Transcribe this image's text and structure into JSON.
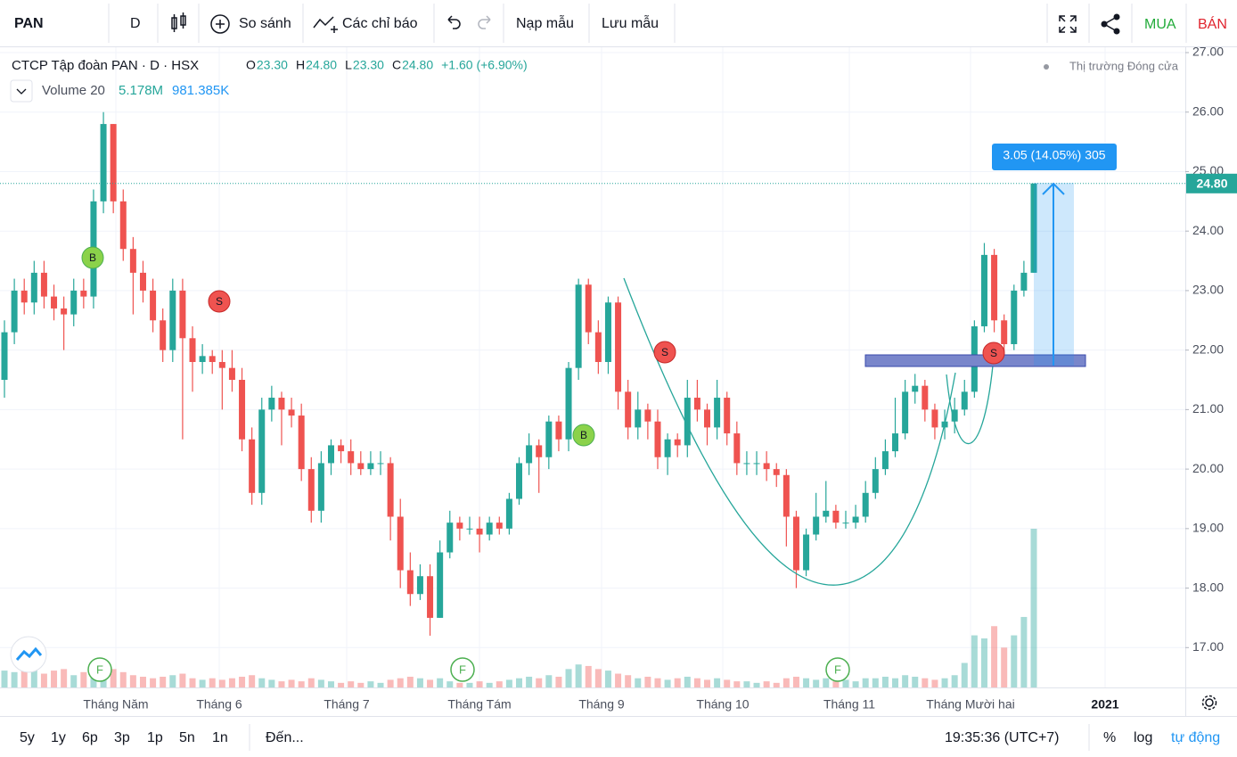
{
  "toolbar": {
    "symbol": "PAN",
    "interval": "D",
    "compare": "So sánh",
    "indicators": "Các chỉ báo",
    "load_template": "Nạp mẫu",
    "save_template": "Lưu mẫu",
    "buy": "MUA",
    "sell": "BÁN"
  },
  "bottom_bar": {
    "ranges": [
      "5y",
      "1y",
      "6p",
      "3p",
      "1p",
      "5n",
      "1n"
    ],
    "goto": "Đến...",
    "clock": "19:35:36 (UTC+7)",
    "percent": "%",
    "log": "log",
    "auto": "tự động"
  },
  "chart_data": {
    "type": "candlestick",
    "title": "CTCP Tập đoàn PAN · D · HSX",
    "ohlc_legend": [
      {
        "key": "O",
        "value": "23.30"
      },
      {
        "key": "H",
        "value": "24.80"
      },
      {
        "key": "L",
        "value": "23.30"
      },
      {
        "key": "C",
        "value": "24.80"
      }
    ],
    "change": "+1.60 (+6.90%)",
    "market_status": "Thị trường Đóng cửa",
    "volume_legend": {
      "name": "Volume 20",
      "value": "5.178M",
      "ma": "981.385K"
    },
    "measure_label": "3.05 (14.05%) 305",
    "markers": [
      "B",
      "S",
      "B",
      "S",
      "S"
    ],
    "events": [
      "F",
      "F",
      "F"
    ],
    "time_labels": [
      "Tháng Năm",
      "Tháng 6",
      "Tháng 7",
      "Tháng Tám",
      "Tháng 9",
      "Tháng 10",
      "Tháng 11",
      "Tháng Mười hai",
      "2021"
    ],
    "ylim": [
      16.33,
      27.09
    ],
    "yticks": [
      {
        "value": 27,
        "label": "27.00"
      },
      {
        "value": 26,
        "label": "26.00"
      },
      {
        "value": 25,
        "label": "25.00"
      },
      {
        "value": 24,
        "label": "24.00"
      },
      {
        "value": 23,
        "label": "23.00"
      },
      {
        "value": 22,
        "label": "22.00"
      },
      {
        "value": 21,
        "label": "21.00"
      },
      {
        "value": 20,
        "label": "20.00"
      },
      {
        "value": 19,
        "label": "19.00"
      },
      {
        "value": 18,
        "label": "18.00"
      },
      {
        "value": 17,
        "label": "17.00"
      }
    ],
    "price_tag": {
      "value": 24.8,
      "label": "24.80"
    },
    "up_color": "#26a69a",
    "down_color": "#ef5350",
    "grid": true,
    "open": [
      21.5,
      22.3,
      23.0,
      22.8,
      23.3,
      22.9,
      22.7,
      22.6,
      23.0,
      22.9,
      24.5,
      25.8,
      24.5,
      23.7,
      23.3,
      23.0,
      22.5,
      22.0,
      23.0,
      22.2,
      21.8,
      21.9,
      21.8,
      21.7,
      21.5,
      20.5,
      19.6,
      21.0,
      21.2,
      21.0,
      20.9,
      20.0,
      19.3,
      20.1,
      20.4,
      20.3,
      20.1,
      20.0,
      20.1,
      20.1,
      19.2,
      18.3,
      17.9,
      18.2,
      17.5,
      18.6,
      19.1,
      19.0,
      19.0,
      18.9,
      19.1,
      19.0,
      19.5,
      20.1,
      20.4,
      20.2,
      20.8,
      20.5,
      21.7,
      23.1,
      22.3,
      21.8,
      22.8,
      21.3,
      20.7,
      21.0,
      20.8,
      20.2,
      20.5,
      20.4,
      21.2,
      21.0,
      20.7,
      21.2,
      20.6,
      20.1,
      20.1,
      20.1,
      20.0,
      19.9,
      19.2,
      18.3,
      18.9,
      19.2,
      19.3,
      19.1,
      19.1,
      19.2,
      19.6,
      20.0,
      20.3,
      20.6,
      21.3,
      21.4,
      21.0,
      20.7,
      20.8,
      21.0,
      21.3,
      22.4,
      23.6,
      22.5,
      22.1,
      23.0,
      23.3
    ],
    "high": [
      22.5,
      23.2,
      23.2,
      23.5,
      23.5,
      23.1,
      22.9,
      23.2,
      23.2,
      24.7,
      26.0,
      25.8,
      24.7,
      23.9,
      23.5,
      23.2,
      22.7,
      23.2,
      23.2,
      22.4,
      22.1,
      22.0,
      22.0,
      22.0,
      21.7,
      20.7,
      21.2,
      21.4,
      21.3,
      21.2,
      21.1,
      20.2,
      20.3,
      20.5,
      20.5,
      20.5,
      20.3,
      20.3,
      20.3,
      20.2,
      19.5,
      18.6,
      18.4,
      18.4,
      18.8,
      19.3,
      19.2,
      19.2,
      19.2,
      19.2,
      19.2,
      19.6,
      20.2,
      20.6,
      20.5,
      20.9,
      20.9,
      21.8,
      23.2,
      23.2,
      22.5,
      22.9,
      22.9,
      21.5,
      21.3,
      21.1,
      21.0,
      20.6,
      20.6,
      21.5,
      21.5,
      21.1,
      21.5,
      21.3,
      20.8,
      20.3,
      20.3,
      20.3,
      20.1,
      20.0,
      19.3,
      19.0,
      19.6,
      19.8,
      19.4,
      19.3,
      19.4,
      19.8,
      20.2,
      20.5,
      21.2,
      21.5,
      21.6,
      21.5,
      21.1,
      21.0,
      21.2,
      21.5,
      22.5,
      23.8,
      23.7,
      22.6,
      23.1,
      23.5,
      24.8
    ],
    "low": [
      21.2,
      22.1,
      22.6,
      22.6,
      22.7,
      22.5,
      22.0,
      22.4,
      22.7,
      22.7,
      24.3,
      24.3,
      23.5,
      22.6,
      22.8,
      22.3,
      21.8,
      21.8,
      20.5,
      21.3,
      21.6,
      21.6,
      21.0,
      21.3,
      20.3,
      19.4,
      19.4,
      20.8,
      20.4,
      20.7,
      19.8,
      19.1,
      19.1,
      19.9,
      20.1,
      19.9,
      19.9,
      19.9,
      19.9,
      18.8,
      18.0,
      17.7,
      17.8,
      17.2,
      17.5,
      18.5,
      18.8,
      18.9,
      18.6,
      18.8,
      18.9,
      18.9,
      19.4,
      19.9,
      19.6,
      20.0,
      20.3,
      20.3,
      21.5,
      22.1,
      21.6,
      21.6,
      21.0,
      20.5,
      20.5,
      20.5,
      20.0,
      19.9,
      20.2,
      20.2,
      20.8,
      20.4,
      20.5,
      20.4,
      19.9,
      19.9,
      19.9,
      19.8,
      19.7,
      18.7,
      18.0,
      18.2,
      18.8,
      19.1,
      19.0,
      19.0,
      19.0,
      19.1,
      19.5,
      19.9,
      20.2,
      20.5,
      21.1,
      20.8,
      20.5,
      20.5,
      20.6,
      20.9,
      21.2,
      22.3,
      22.3,
      21.9,
      22.0,
      22.9,
      23.3
    ],
    "close": [
      22.3,
      23.0,
      22.8,
      23.3,
      22.9,
      22.7,
      22.6,
      23.0,
      22.9,
      24.5,
      25.8,
      24.5,
      23.7,
      23.3,
      23.0,
      22.5,
      22.0,
      23.0,
      22.2,
      21.8,
      21.9,
      21.8,
      21.7,
      21.5,
      20.5,
      19.6,
      21.0,
      21.2,
      21.0,
      20.9,
      20.0,
      19.3,
      20.1,
      20.4,
      20.3,
      20.1,
      20.0,
      20.1,
      20.1,
      19.2,
      18.3,
      17.9,
      18.2,
      17.5,
      18.6,
      19.1,
      19.0,
      19.0,
      18.9,
      19.1,
      19.0,
      19.5,
      20.1,
      20.4,
      20.2,
      20.8,
      20.5,
      21.7,
      23.1,
      22.3,
      21.8,
      22.8,
      21.3,
      20.7,
      21.0,
      20.8,
      20.2,
      20.5,
      20.4,
      21.2,
      21.0,
      20.7,
      21.2,
      20.6,
      20.1,
      20.1,
      20.1,
      20.0,
      19.9,
      19.2,
      18.3,
      18.9,
      19.2,
      19.3,
      19.1,
      19.1,
      19.2,
      19.6,
      20.0,
      20.3,
      20.6,
      21.3,
      21.4,
      21.0,
      20.7,
      20.8,
      21.0,
      21.3,
      22.4,
      23.6,
      22.5,
      22.1,
      23.0,
      23.3,
      24.8
    ],
    "volume": [
      0.55,
      0.5,
      0.6,
      0.7,
      0.45,
      0.55,
      0.6,
      0.4,
      0.5,
      0.8,
      0.9,
      0.6,
      0.5,
      0.4,
      0.35,
      0.3,
      0.35,
      0.4,
      0.45,
      0.3,
      0.25,
      0.3,
      0.25,
      0.3,
      0.35,
      0.4,
      0.3,
      0.25,
      0.2,
      0.25,
      0.2,
      0.3,
      0.25,
      0.2,
      0.15,
      0.2,
      0.15,
      0.2,
      0.15,
      0.25,
      0.3,
      0.35,
      0.3,
      0.25,
      0.3,
      0.2,
      0.15,
      0.15,
      0.2,
      0.15,
      0.2,
      0.25,
      0.3,
      0.35,
      0.3,
      0.4,
      0.35,
      0.6,
      0.75,
      0.7,
      0.6,
      0.55,
      0.45,
      0.4,
      0.3,
      0.35,
      0.3,
      0.25,
      0.3,
      0.35,
      0.3,
      0.25,
      0.3,
      0.25,
      0.2,
      0.2,
      0.15,
      0.2,
      0.15,
      0.3,
      0.35,
      0.3,
      0.25,
      0.3,
      0.2,
      0.25,
      0.2,
      0.3,
      0.3,
      0.35,
      0.3,
      0.4,
      0.35,
      0.3,
      0.25,
      0.3,
      0.4,
      0.8,
      1.7,
      1.6,
      2.0,
      1.3,
      1.7,
      2.3,
      5.178
    ]
  }
}
